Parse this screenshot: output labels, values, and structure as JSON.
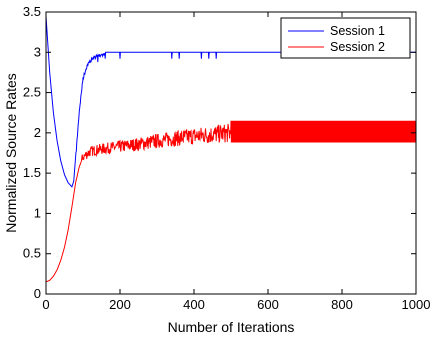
{
  "chart_data": {
    "type": "line",
    "title": "",
    "xlabel": "Number of Iterations",
    "ylabel": "Normalized Source Rates",
    "xlim": [
      0,
      1000
    ],
    "ylim": [
      0,
      3.5
    ],
    "xticks": [
      "0",
      "200",
      "400",
      "600",
      "800",
      "1000"
    ],
    "yticks": [
      "0",
      "0.5",
      "1",
      "1.5",
      "2",
      "2.5",
      "3",
      "3.5"
    ],
    "grid": false,
    "legend_position": "top-right",
    "series": [
      {
        "name": "Session 1",
        "color": "#0000ff",
        "x": [
          0,
          5,
          10,
          20,
          30,
          40,
          50,
          60,
          70,
          75,
          80,
          90,
          100,
          110,
          120,
          130,
          140,
          150,
          160,
          200,
          340,
          360,
          420,
          460,
          500,
          600,
          800,
          1000
        ],
        "y": [
          3.45,
          3.1,
          2.75,
          2.25,
          1.9,
          1.65,
          1.48,
          1.38,
          1.33,
          1.4,
          1.7,
          2.3,
          2.7,
          2.85,
          2.92,
          2.96,
          2.98,
          3.0,
          3.0,
          3.0,
          3.0,
          3.0,
          3.0,
          3.0,
          3.0,
          3.0,
          3.0,
          3.0
        ]
      },
      {
        "name": "Session 2",
        "color": "#ff0000",
        "x": [
          0,
          10,
          20,
          30,
          40,
          50,
          60,
          70,
          80,
          90,
          100,
          120,
          150,
          200,
          250,
          300,
          350,
          400,
          450,
          500,
          600,
          700,
          800,
          900,
          1000
        ],
        "y": [
          0.15,
          0.17,
          0.22,
          0.3,
          0.42,
          0.58,
          0.8,
          1.08,
          1.38,
          1.58,
          1.7,
          1.77,
          1.8,
          1.83,
          1.86,
          1.9,
          1.93,
          1.96,
          1.98,
          2.0,
          2.0,
          2.0,
          2.0,
          2.0,
          2.0
        ]
      }
    ]
  }
}
